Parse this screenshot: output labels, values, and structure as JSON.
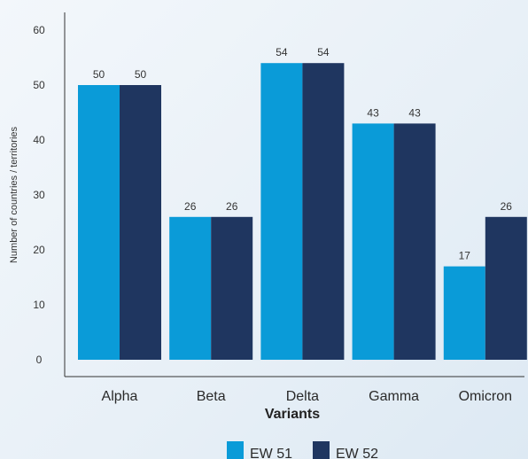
{
  "chart_data": {
    "type": "bar",
    "categories": [
      "Alpha",
      "Beta",
      "Delta",
      "Gamma",
      "Omicron"
    ],
    "series": [
      {
        "name": "EW 51",
        "values": [
          50,
          26,
          54,
          43,
          17
        ],
        "color": "#0a9bd8"
      },
      {
        "name": "EW 52",
        "values": [
          50,
          26,
          54,
          43,
          26
        ],
        "color": "#1f3660"
      }
    ],
    "title": "",
    "xlabel": "Variants",
    "ylabel": "Number of countries / territories",
    "ylim": [
      0,
      60
    ],
    "yticks": [
      0,
      10,
      20,
      30,
      40,
      50,
      60
    ],
    "grid": false,
    "legend": "bottom-center",
    "data_labels": true
  }
}
